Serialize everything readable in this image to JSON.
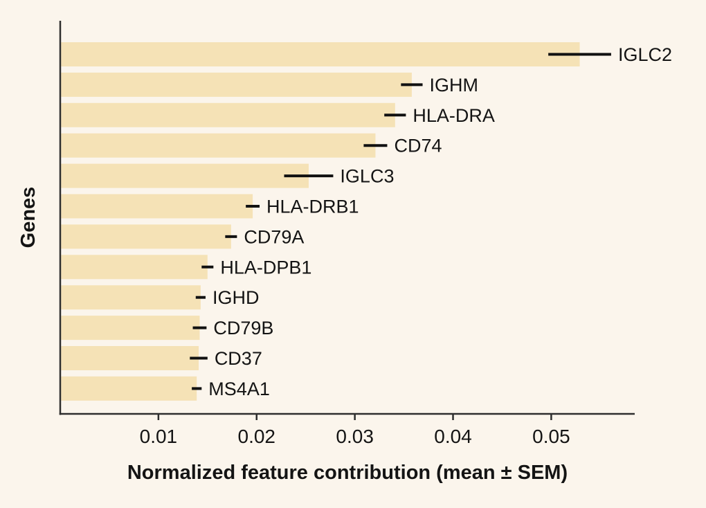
{
  "chart_data": {
    "type": "bar",
    "orientation": "horizontal",
    "title": "",
    "xlabel": "Normalized feature contribution (mean ± SEM)",
    "ylabel": "Genes",
    "categories": [
      "IGLC2",
      "IGHM",
      "HLA-DRA",
      "CD74",
      "IGLC3",
      "HLA-DRB1",
      "CD79A",
      "HLA-DPB1",
      "IGHD",
      "CD79B",
      "CD37",
      "MS4A1"
    ],
    "series": [
      {
        "name": "mean",
        "values": [
          0.0529,
          0.0358,
          0.0341,
          0.0321,
          0.0253,
          0.0196,
          0.0174,
          0.015,
          0.0143,
          0.0142,
          0.0141,
          0.0139
        ]
      },
      {
        "name": "sem",
        "values": [
          0.0032,
          0.0011,
          0.0011,
          0.0012,
          0.0025,
          0.0007,
          0.0006,
          0.0006,
          0.0005,
          0.0007,
          0.0009,
          0.0005
        ]
      }
    ],
    "xlim": [
      0,
      0.0585
    ],
    "xticks": [
      0.01,
      0.02,
      0.03,
      0.04,
      0.05
    ],
    "xtick_labels": [
      "0.01",
      "0.02",
      "0.03",
      "0.04",
      "0.05"
    ],
    "grid": false,
    "legend": "none",
    "colors": {
      "background": "#fbf5ec",
      "bar_fill": "#f5e2b6",
      "error_bar": "#111111",
      "axis_line": "#2e2e2e",
      "text": "#141414"
    }
  }
}
